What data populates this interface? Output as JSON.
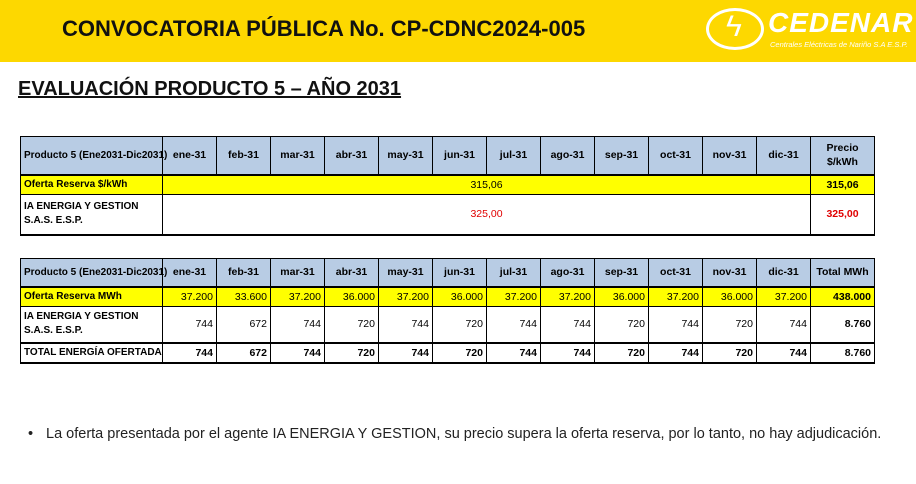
{
  "header": {
    "title": "CONVOCATORIA PÚBLICA  No. CP-CDNC2024-005",
    "logo_name": "CEDENAR",
    "logo_sub": "Centrales Eléctricas de Nariño S.A E.S.P.",
    "accent": "#fdd800"
  },
  "section_title": "EVALUACIÓN PRODUCTO 5 – AÑO 2031",
  "months": [
    "ene-31",
    "feb-31",
    "mar-31",
    "abr-31",
    "may-31",
    "jun-31",
    "jul-31",
    "ago-31",
    "sep-31",
    "oct-31",
    "nov-31",
    "dic-31"
  ],
  "price_table": {
    "product_label": "Producto 5 (Ene2031-Dic2031)",
    "last_header": "Precio $/kWh",
    "reserve": {
      "label": "Oferta Reserva $/kWh",
      "value": "315,06",
      "total": "315,06"
    },
    "bidder": {
      "label": "IA ENERGIA Y GESTION S.A.S. E.S.P.",
      "value": "325,00",
      "total": "325,00"
    }
  },
  "energy_table": {
    "product_label": "Producto 5 (Ene2031-Dic2031)",
    "last_header": "Total MWh",
    "reserve": {
      "label": "Oferta Reserva MWh",
      "values": [
        "37.200",
        "33.600",
        "37.200",
        "36.000",
        "37.200",
        "36.000",
        "37.200",
        "37.200",
        "36.000",
        "37.200",
        "36.000",
        "37.200"
      ],
      "total": "438.000"
    },
    "bidder": {
      "label": "IA ENERGIA Y GESTION S.A.S. E.S.P.",
      "values": [
        "744",
        "672",
        "744",
        "720",
        "744",
        "720",
        "744",
        "744",
        "720",
        "744",
        "720",
        "744"
      ],
      "total": "8.760"
    },
    "offered": {
      "label": "TOTAL ENERGÍA OFERTADA",
      "values": [
        "744",
        "672",
        "744",
        "720",
        "744",
        "720",
        "744",
        "744",
        "720",
        "744",
        "720",
        "744"
      ],
      "total": "8.760"
    }
  },
  "note": {
    "bullet": "•",
    "text": "La oferta presentada por el agente IA ENERGIA Y GESTION, su precio supera la oferta reserva, por lo tanto, no hay adjudicación."
  }
}
